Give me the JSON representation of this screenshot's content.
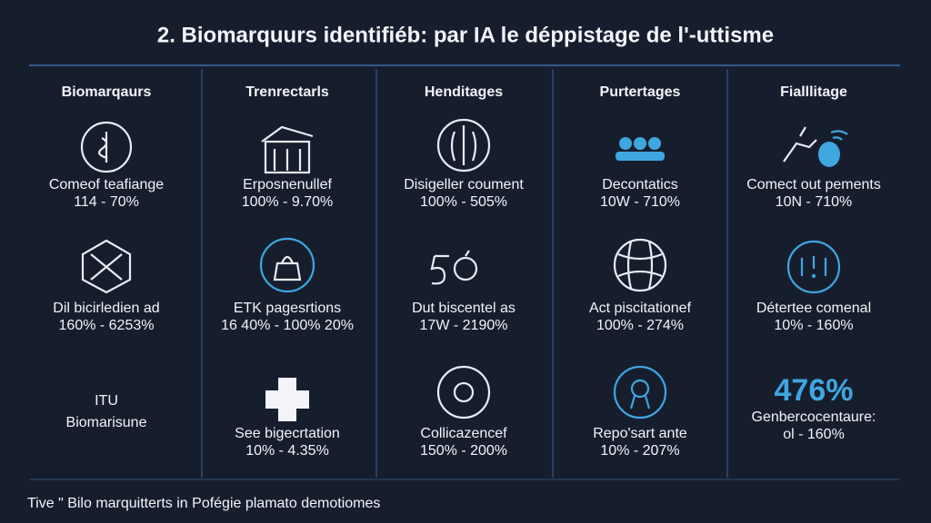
{
  "title": "2. Biomarquurs identifiéb: par IA le déppistage de l'-uttisme",
  "columns": [
    {
      "header": "Biomarqaurs",
      "items": [
        {
          "lines": [
            "Comeof teafiange",
            "114 - 70%"
          ]
        },
        {
          "lines": [
            "Dil bicirledien ad",
            "160% - 6253%"
          ]
        },
        {
          "lines": [
            "ITU",
            "Biomarisune"
          ]
        }
      ]
    },
    {
      "header": "Trenrectarls",
      "items": [
        {
          "lines": [
            "Erposnenullef",
            "100% - 9.70%"
          ]
        },
        {
          "lines": [
            "ETK pagesrtions",
            "16 40% - 100% 20%"
          ]
        },
        {
          "lines": [
            "See bigecrtation",
            "10% - 4.35%"
          ]
        }
      ]
    },
    {
      "header": "Henditages",
      "items": [
        {
          "lines": [
            "Disigeller coument",
            "100% - 505%"
          ]
        },
        {
          "lines": [
            "Dut biscentel as",
            "17W - 2190%"
          ]
        },
        {
          "lines": [
            "Collicazencef",
            "150% - 200%"
          ]
        }
      ]
    },
    {
      "header": "Purtertages",
      "items": [
        {
          "lines": [
            "Decontatics",
            "10W - 710%"
          ]
        },
        {
          "lines": [
            "Act piscitationef",
            "100% - 274%"
          ]
        },
        {
          "lines": [
            "Repo'sart ante",
            "10% - 207%"
          ]
        }
      ]
    },
    {
      "header": "Fialllitage",
      "items": [
        {
          "lines": [
            "Comect out pements",
            "10N - 710%"
          ]
        },
        {
          "lines": [
            "Détertee comenal",
            "10% - 160%"
          ]
        },
        {
          "big": "476%",
          "lines": [
            "Genbercocentaure:",
            "ol - 160%"
          ]
        }
      ]
    }
  ],
  "footer": "Tive \" Bilo marquitterts in Pofégie plamato demotiomes"
}
